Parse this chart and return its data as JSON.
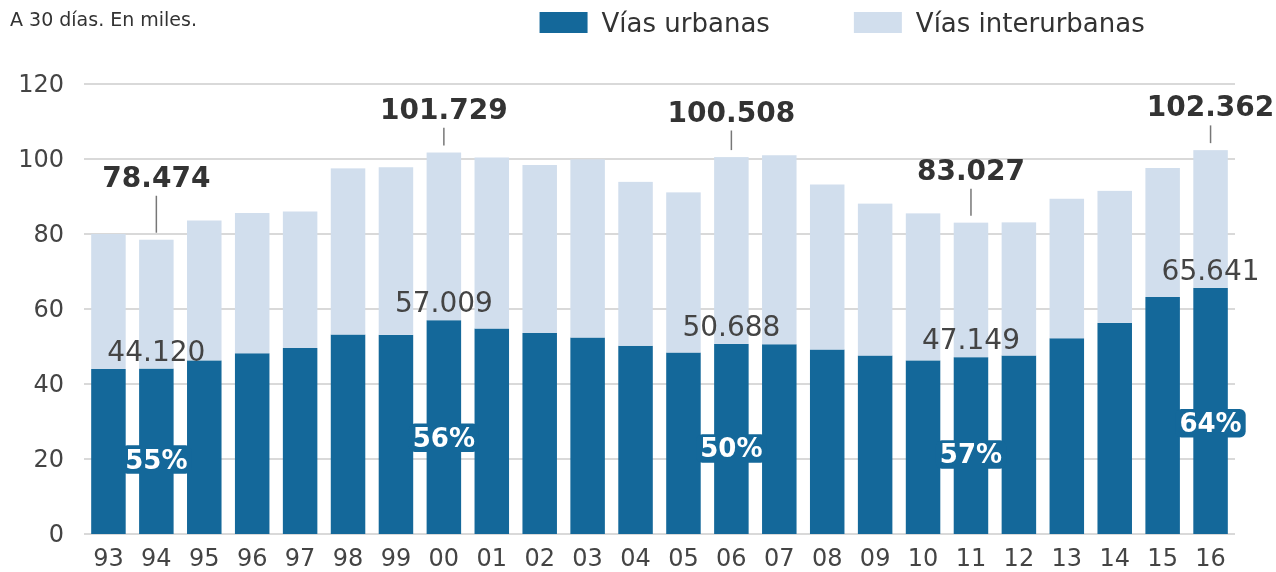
{
  "chart_data": {
    "type": "bar",
    "title": "A 30 días. En miles.",
    "categories": [
      "93",
      "94",
      "95",
      "96",
      "97",
      "98",
      "99",
      "00",
      "01",
      "02",
      "03",
      "04",
      "05",
      "06",
      "07",
      "08",
      "09",
      "10",
      "11",
      "12",
      "13",
      "14",
      "15",
      "16"
    ],
    "series": [
      {
        "name": "Vías urbanas",
        "color": "#14689a",
        "values": [
          44.0,
          44.12,
          46.3,
          48.2,
          49.6,
          53.2,
          53.1,
          57.009,
          54.8,
          53.6,
          52.4,
          50.2,
          48.4,
          50.688,
          50.6,
          49.2,
          47.6,
          46.3,
          47.149,
          47.6,
          52.2,
          56.3,
          63.2,
          65.641
        ],
        "value_labels": [
          null,
          "44.120",
          null,
          null,
          null,
          null,
          null,
          "57.009",
          null,
          null,
          null,
          null,
          null,
          "50.688",
          null,
          null,
          null,
          null,
          "47.149",
          null,
          null,
          null,
          null,
          "65.641"
        ]
      },
      {
        "name": "Vías interurbanas",
        "color": "#d1deed",
        "values": [
          36.0,
          34.354,
          37.3,
          37.4,
          36.4,
          44.3,
          44.7,
          44.72,
          45.6,
          44.8,
          47.5,
          43.7,
          42.7,
          49.82,
          50.4,
          44.0,
          40.5,
          39.2,
          35.878,
          35.5,
          37.2,
          35.2,
          34.4,
          36.721
        ]
      }
    ],
    "stacked": true,
    "ylim": [
      0,
      120
    ],
    "yticks": [
      0,
      20,
      40,
      60,
      80,
      100,
      120
    ],
    "grid": "y",
    "legend": "top",
    "totals": [
      null,
      "78.474",
      null,
      null,
      null,
      null,
      null,
      "101.729",
      null,
      null,
      null,
      null,
      null,
      "100.508",
      null,
      null,
      null,
      null,
      "83.027",
      null,
      null,
      null,
      null,
      "102.362"
    ],
    "annotations": [
      "55%",
      "56%",
      "50%",
      "57%",
      "64%"
    ]
  }
}
